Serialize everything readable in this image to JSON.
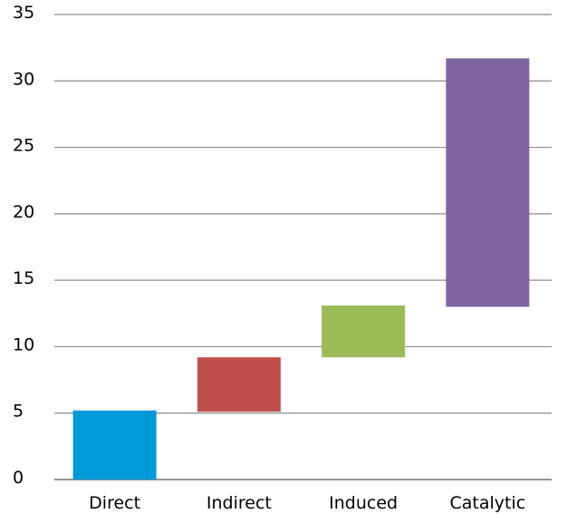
{
  "chart_data": {
    "type": "bar",
    "subtype": "waterfall",
    "title": "",
    "xlabel": "",
    "ylabel": "",
    "ylim": [
      0,
      35
    ],
    "yticks": [
      "0",
      "5",
      "10",
      "15",
      "20",
      "25",
      "30",
      "35"
    ],
    "grid": true,
    "legend": "none",
    "categories": [
      "Direct",
      "Indirect",
      "Induced",
      "Catalytic"
    ],
    "series": [
      {
        "ranges": [
          [
            0,
            5.2
          ],
          [
            5.1,
            9.2
          ],
          [
            9.2,
            13.1
          ],
          [
            13.0,
            31.7
          ]
        ],
        "colors": [
          "#0099d8",
          "#c0504d",
          "#9bbb59",
          "#8064a2"
        ]
      }
    ]
  }
}
